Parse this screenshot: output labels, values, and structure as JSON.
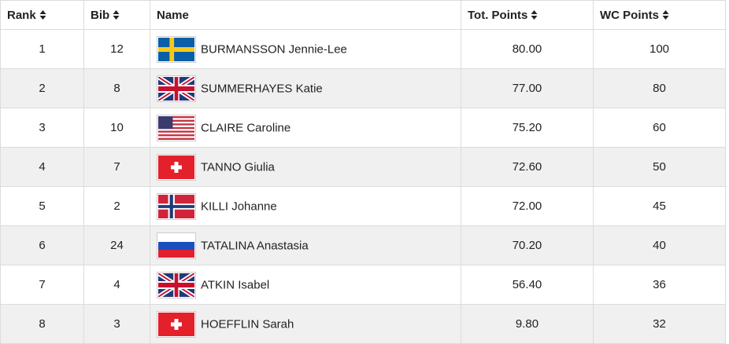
{
  "table": {
    "headers": [
      "Rank",
      "Bib",
      "Name",
      "Tot. Points",
      "WC Points"
    ],
    "rows": [
      [
        "1",
        "12",
        "BURMANSSON Jennie-Lee",
        "80.00",
        "100"
      ],
      [
        "2",
        "8",
        "SUMMERHAYES Katie",
        "77.00",
        "80"
      ],
      [
        "3",
        "10",
        "CLAIRE Caroline",
        "75.20",
        "60"
      ],
      [
        "4",
        "7",
        "TANNO Giulia",
        "72.60",
        "50"
      ],
      [
        "5",
        "2",
        "KILLI Johanne",
        "72.00",
        "45"
      ],
      [
        "6",
        "24",
        "TATALINA Anastasia",
        "70.20",
        "40"
      ],
      [
        "7",
        "4",
        "ATKIN Isabel",
        "56.40",
        "36"
      ],
      [
        "8",
        "3",
        "HOEFFLIN Sarah",
        "9.80",
        "32"
      ]
    ]
  }
}
